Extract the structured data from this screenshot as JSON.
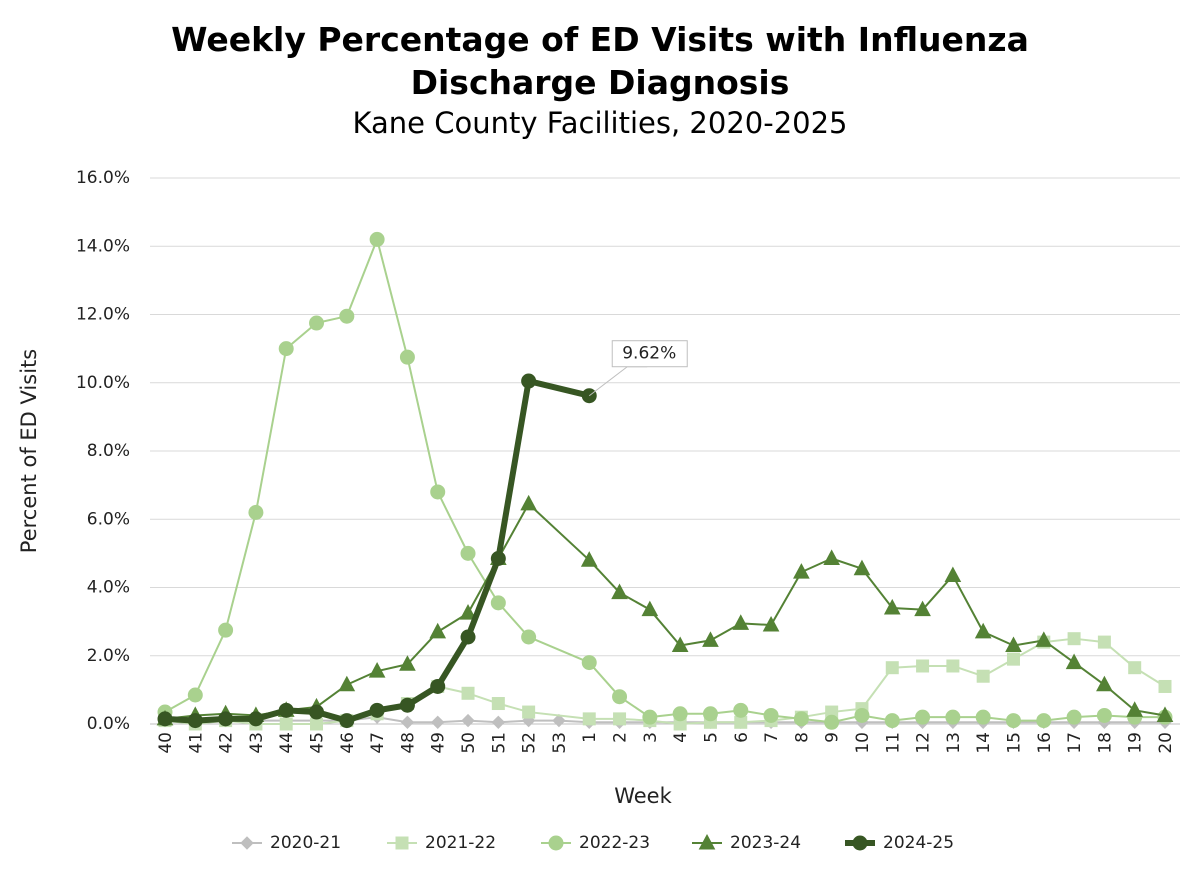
{
  "chart_data": {
    "type": "line",
    "title": "Weekly Percentage of ED Visits with Influenza Discharge Diagnosis",
    "subtitle": "Kane County Facilities, 2020-2025",
    "x_label": "Week",
    "y_label": "Percent of ED Visits",
    "categories": [
      "40",
      "41",
      "42",
      "43",
      "44",
      "45",
      "46",
      "47",
      "48",
      "49",
      "50",
      "51",
      "52",
      "53",
      "1",
      "2",
      "3",
      "4",
      "5",
      "6",
      "7",
      "8",
      "9",
      "10",
      "11",
      "12",
      "13",
      "14",
      "15",
      "16",
      "17",
      "18",
      "19",
      "20"
    ],
    "ylim": [
      0,
      16
    ],
    "yticks": [
      {
        "value": 0,
        "label": "0.0%"
      },
      {
        "value": 2,
        "label": "2.0%"
      },
      {
        "value": 4,
        "label": "4.0%"
      },
      {
        "value": 6,
        "label": "6.0%"
      },
      {
        "value": 8,
        "label": "8.0%"
      },
      {
        "value": 10,
        "label": "10.0%"
      },
      {
        "value": 12,
        "label": "12.0%"
      },
      {
        "value": 14,
        "label": "14.0%"
      },
      {
        "value": 16,
        "label": "16.0%"
      }
    ],
    "grid": true,
    "span_gaps": true,
    "legend": "bottom",
    "series": [
      {
        "name": "2020-21",
        "color": "#bfbfbf",
        "marker": "diamond",
        "line_width": 2,
        "values": [
          0.1,
          0.1,
          0.1,
          0.1,
          0.1,
          0.1,
          0.1,
          0.2,
          0.05,
          0.05,
          0.1,
          0.05,
          0.1,
          0.1,
          0.05,
          0.05,
          0.05,
          0.05,
          0.05,
          0.05,
          0.05,
          0.05,
          0.05,
          0.05,
          0.05,
          0.05,
          0.05,
          0.05,
          0.05,
          0.05,
          0.05,
          0.05,
          0.05,
          0.05
        ]
      },
      {
        "name": "2021-22",
        "color": "#c5e0b4",
        "marker": "square",
        "line_width": 2,
        "values": [
          0.1,
          0.0,
          0.1,
          0.0,
          0.0,
          0.0,
          0.1,
          0.3,
          0.6,
          1.1,
          0.9,
          0.6,
          0.35,
          null,
          0.15,
          0.15,
          0.1,
          0.0,
          0.05,
          0.05,
          0.1,
          0.2,
          0.35,
          0.45,
          1.65,
          1.7,
          1.7,
          1.4,
          1.9,
          2.4,
          2.5,
          2.4,
          1.65,
          1.1
        ]
      },
      {
        "name": "2022-23",
        "color": "#a9d18e",
        "marker": "circle",
        "line_width": 2,
        "values": [
          0.35,
          0.85,
          2.75,
          6.2,
          11.0,
          11.75,
          11.95,
          14.2,
          10.75,
          6.8,
          5.0,
          3.55,
          2.55,
          null,
          1.8,
          0.8,
          0.2,
          0.3,
          0.3,
          0.4,
          0.25,
          0.15,
          0.05,
          0.25,
          0.1,
          0.2,
          0.2,
          0.2,
          0.1,
          0.1,
          0.2,
          0.25,
          0.2,
          0.2
        ]
      },
      {
        "name": "2023-24",
        "color": "#548235",
        "marker": "triangle",
        "line_width": 2,
        "values": [
          0.15,
          0.25,
          0.3,
          0.25,
          0.4,
          0.5,
          1.15,
          1.55,
          1.75,
          2.7,
          3.25,
          4.85,
          6.45,
          null,
          4.8,
          3.85,
          3.35,
          2.3,
          2.45,
          2.95,
          2.9,
          4.45,
          4.85,
          4.55,
          3.4,
          3.35,
          4.35,
          2.7,
          2.3,
          2.45,
          1.8,
          1.15,
          0.4,
          0.25
        ]
      },
      {
        "name": "2024-25",
        "color": "#375623",
        "marker": "circle",
        "line_width": 6,
        "values": [
          0.15,
          0.1,
          0.15,
          0.15,
          0.4,
          0.35,
          0.1,
          0.4,
          0.55,
          1.1,
          2.55,
          4.85,
          10.05,
          null,
          9.62,
          null,
          null,
          null,
          null,
          null,
          null,
          null,
          null,
          null,
          null,
          null,
          null,
          null,
          null,
          null,
          null,
          null,
          null,
          null
        ],
        "value_labels": [
          null,
          null,
          null,
          null,
          null,
          null,
          null,
          null,
          null,
          null,
          null,
          null,
          null,
          null,
          "9.62%",
          null,
          null,
          null,
          null,
          null,
          null,
          null,
          null,
          null,
          null,
          null,
          null,
          null,
          null,
          null,
          null,
          null,
          null,
          null
        ]
      }
    ]
  }
}
